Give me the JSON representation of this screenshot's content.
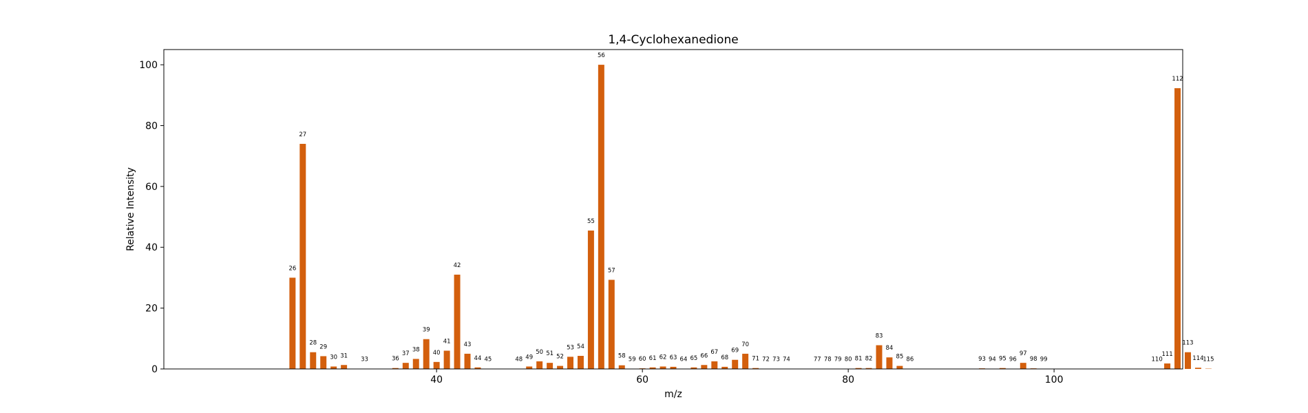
{
  "chart_data": {
    "type": "bar",
    "title": "1,4-Cyclohexanedione",
    "xlabel": "m/z",
    "ylabel": "Relative Intensity",
    "xlim": [
      13.5,
      112.5
    ],
    "ylim": [
      0,
      105
    ],
    "xticks": [
      40,
      60,
      80,
      100
    ],
    "yticks": [
      0,
      20,
      40,
      60,
      80,
      100
    ],
    "bar_color": "#d35f0d",
    "grid": false,
    "x": [
      26,
      27,
      28,
      29,
      30,
      31,
      33,
      36,
      37,
      38,
      39,
      40,
      41,
      42,
      43,
      44,
      45,
      48,
      49,
      50,
      51,
      52,
      53,
      54,
      55,
      56,
      57,
      58,
      59,
      60,
      61,
      62,
      63,
      64,
      65,
      66,
      67,
      68,
      69,
      70,
      71,
      72,
      73,
      74,
      77,
      78,
      79,
      80,
      81,
      82,
      83,
      84,
      85,
      86,
      93,
      94,
      95,
      96,
      97,
      98,
      99,
      110,
      111,
      112,
      113,
      114,
      115
    ],
    "values": [
      30,
      74,
      5.5,
      4.2,
      0.8,
      1.3,
      0.1,
      0.3,
      2,
      3.3,
      9.8,
      2.3,
      6,
      31,
      5,
      0.5,
      0.1,
      0.1,
      0.8,
      2.5,
      2,
      1,
      4,
      4.3,
      45.5,
      100,
      29.3,
      1.2,
      0.1,
      0.2,
      0.5,
      0.8,
      0.7,
      0.1,
      0.5,
      1.3,
      2.5,
      0.7,
      3,
      5,
      0.3,
      0.1,
      0.1,
      0.1,
      0.1,
      0.1,
      0.1,
      0.1,
      0.3,
      0.3,
      7.8,
      3.8,
      1,
      0.1,
      0.2,
      0.1,
      0.3,
      0.1,
      2,
      0.2,
      0.1,
      0.1,
      1.8,
      92.3,
      5.5,
      0.4,
      0.1
    ]
  }
}
